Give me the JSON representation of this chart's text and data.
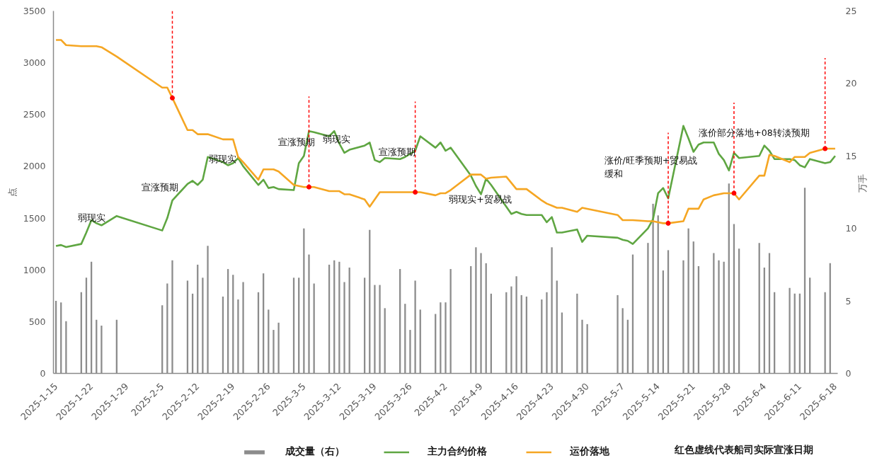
{
  "chart_data": {
    "type": "line",
    "x": [
      "2025-01-15",
      "2025-01-16",
      "2025-01-17",
      "2025-01-20",
      "2025-01-21",
      "2025-01-22",
      "2025-01-23",
      "2025-01-24",
      "2025-01-27",
      "2025-02-05",
      "2025-02-06",
      "2025-02-07",
      "2025-02-10",
      "2025-02-11",
      "2025-02-12",
      "2025-02-13",
      "2025-02-14",
      "2025-02-17",
      "2025-02-18",
      "2025-02-19",
      "2025-02-20",
      "2025-02-21",
      "2025-02-24",
      "2025-02-25",
      "2025-02-26",
      "2025-02-27",
      "2025-02-28",
      "2025-03-03",
      "2025-03-04",
      "2025-03-05",
      "2025-03-06",
      "2025-03-07",
      "2025-03-10",
      "2025-03-11",
      "2025-03-12",
      "2025-03-13",
      "2025-03-14",
      "2025-03-17",
      "2025-03-18",
      "2025-03-19",
      "2025-03-20",
      "2025-03-21",
      "2025-03-24",
      "2025-03-25",
      "2025-03-26",
      "2025-03-27",
      "2025-03-28",
      "2025-03-31",
      "2025-04-01",
      "2025-04-02",
      "2025-04-03",
      "2025-04-07",
      "2025-04-08",
      "2025-04-09",
      "2025-04-10",
      "2025-04-11",
      "2025-04-14",
      "2025-04-15",
      "2025-04-16",
      "2025-04-17",
      "2025-04-18",
      "2025-04-21",
      "2025-04-22",
      "2025-04-23",
      "2025-04-24",
      "2025-04-25",
      "2025-04-28",
      "2025-04-29",
      "2025-04-30",
      "2025-05-06",
      "2025-05-07",
      "2025-05-08",
      "2025-05-09",
      "2025-05-12",
      "2025-05-13",
      "2025-05-14",
      "2025-05-15",
      "2025-05-16",
      "2025-05-19",
      "2025-05-20",
      "2025-05-21",
      "2025-05-22",
      "2025-05-23",
      "2025-05-25",
      "2025-05-26",
      "2025-05-27",
      "2025-05-28",
      "2025-05-29",
      "2025-05-30",
      "2025-06-03",
      "2025-06-04",
      "2025-06-05",
      "2025-06-06",
      "2025-06-09",
      "2025-06-10",
      "2025-06-11",
      "2025-06-12",
      "2025-06-13",
      "2025-06-16",
      "2025-06-17",
      "2025-06-18"
    ],
    "series": [
      {
        "name": "成交量（右）",
        "type": "bar",
        "axis": "y2",
        "color": "#8c8c8c",
        "values": [
          5.0,
          4.9,
          3.6,
          5.6,
          6.6,
          7.7,
          3.7,
          3.3,
          3.7,
          4.7,
          6.2,
          7.8,
          6.4,
          5.5,
          7.5,
          6.6,
          8.8,
          5.3,
          7.2,
          6.8,
          5.1,
          6.3,
          5.6,
          6.9,
          4.4,
          3.0,
          3.5,
          6.6,
          6.6,
          10.0,
          8.2,
          6.2,
          7.5,
          7.8,
          7.7,
          6.3,
          7.3,
          6.6,
          9.9,
          6.1,
          6.1,
          4.5,
          7.2,
          4.8,
          3.0,
          6.4,
          4.4,
          4.1,
          4.9,
          4.9,
          7.2,
          7.4,
          8.7,
          8.3,
          7.6,
          5.5,
          5.6,
          6.0,
          6.7,
          5.4,
          5.3,
          5.1,
          5.6,
          8.7,
          6.4,
          4.2,
          5.5,
          3.7,
          3.4,
          5.4,
          4.5,
          3.7,
          8.2,
          9.0,
          11.7,
          10.9,
          7.1,
          8.5,
          7.8,
          10.0,
          9.1,
          7.4,
          null,
          8.3,
          7.8,
          7.7,
          13.1,
          10.3,
          8.6,
          9.0,
          7.3,
          8.3,
          5.6,
          5.9,
          5.5,
          5.5,
          12.8,
          6.6,
          5.6,
          7.6,
          null
        ]
      },
      {
        "name": "主力合约价格",
        "color": "#5fa642",
        "values": [
          1230,
          1240,
          1220,
          1250,
          1360,
          1480,
          1450,
          1430,
          1520,
          1380,
          1500,
          1670,
          1830,
          1860,
          1820,
          1870,
          2090,
          2040,
          2010,
          2030,
          2080,
          2000,
          1820,
          1870,
          1790,
          1800,
          1780,
          1770,
          2030,
          2100,
          2340,
          2330,
          2290,
          2340,
          2220,
          2130,
          2160,
          2200,
          2230,
          2060,
          2040,
          2080,
          2070,
          2090,
          2120,
          2150,
          2290,
          2180,
          2230,
          2150,
          2180,
          1910,
          1810,
          1730,
          1880,
          1820,
          1610,
          1540,
          1560,
          1540,
          1530,
          1530,
          1460,
          1510,
          1360,
          1360,
          1390,
          1270,
          1330,
          1310,
          1290,
          1280,
          1250,
          1400,
          1490,
          1740,
          1790,
          1690,
          2390,
          2270,
          2140,
          2210,
          2230,
          2230,
          2120,
          2060,
          1960,
          2130,
          2080,
          2100,
          2200,
          2150,
          2070,
          2070,
          2060,
          2010,
          1990,
          2070,
          2030,
          2040,
          2100
        ]
      },
      {
        "name": "运价落地",
        "color": "#f5a623",
        "values": [
          3220,
          3220,
          3170,
          3160,
          3160,
          3160,
          3160,
          3150,
          3060,
          2760,
          2760,
          2660,
          2350,
          2350,
          2310,
          2310,
          2310,
          2260,
          2260,
          2260,
          2090,
          2040,
          1870,
          1970,
          1970,
          1970,
          1950,
          1820,
          1810,
          1800,
          1800,
          1800,
          1760,
          1760,
          1760,
          1730,
          1730,
          1680,
          1610,
          1680,
          1750,
          1750,
          1750,
          1750,
          1750,
          1750,
          1750,
          1720,
          1740,
          1740,
          1770,
          1920,
          1920,
          1920,
          1880,
          1890,
          1900,
          1840,
          1780,
          1780,
          1780,
          1670,
          1640,
          1620,
          1600,
          1600,
          1560,
          1600,
          1590,
          1530,
          1480,
          1480,
          1480,
          1470,
          1470,
          1460,
          1450,
          1450,
          1470,
          1590,
          1590,
          1590,
          1680,
          1720,
          1730,
          1740,
          1740,
          1740,
          1680,
          1910,
          1910,
          2110,
          2100,
          2040,
          2090,
          2090,
          2090,
          2130,
          2170,
          2170,
          2170
        ]
      },
      {
        "type": "scatter",
        "marker": "circle",
        "color": "#ff0000",
        "x": [
          "2025-02-07",
          "2025-03-06",
          "2025-03-27",
          "2025-05-16",
          "2025-05-29",
          "2025-06-16"
        ],
        "values": [
          2660,
          1800,
          1750,
          1450,
          1740,
          2170
        ]
      }
    ],
    "xlim": [
      "2025-01-14T12:00",
      "2025-06-18T12:00"
    ],
    "xticks": [
      {
        "value": "2025-01-15",
        "label": "2025-1-15"
      },
      {
        "value": "2025-01-22",
        "label": "2025-1-22"
      },
      {
        "value": "2025-01-29",
        "label": "2025-1-29"
      },
      {
        "value": "2025-02-05",
        "label": "2025-2-5"
      },
      {
        "value": "2025-02-12",
        "label": "2025-2-12"
      },
      {
        "value": "2025-02-19",
        "label": "2025-2-19"
      },
      {
        "value": "2025-02-26",
        "label": "2025-2-26"
      },
      {
        "value": "2025-03-05",
        "label": "2025-3-5"
      },
      {
        "value": "2025-03-12",
        "label": "2025-3-12"
      },
      {
        "value": "2025-03-19",
        "label": "2025-3-19"
      },
      {
        "value": "2025-03-26",
        "label": "2025-3-26"
      },
      {
        "value": "2025-04-02",
        "label": "2025-4-2"
      },
      {
        "value": "2025-04-09",
        "label": "2025-4-9"
      },
      {
        "value": "2025-04-16",
        "label": "2025-4-16"
      },
      {
        "value": "2025-04-23",
        "label": "2025-4-23"
      },
      {
        "value": "2025-04-30",
        "label": "2025-4-30"
      },
      {
        "value": "2025-05-07",
        "label": "2025-5-7"
      },
      {
        "value": "2025-05-14",
        "label": "2025-5-14"
      },
      {
        "value": "2025-05-21",
        "label": "2025-5-21"
      },
      {
        "value": "2025-05-28",
        "label": "2025-5-28"
      },
      {
        "value": "2025-06-04",
        "label": "2025-6-4"
      },
      {
        "value": "2025-06-11",
        "label": "2025-6-11"
      },
      {
        "value": "2025-06-18",
        "label": "2025-6-18"
      }
    ],
    "ylim": [
      0,
      3500
    ],
    "yticks": [
      0,
      500,
      1000,
      1500,
      2000,
      2500,
      3000,
      3500
    ],
    "y2lim": [
      0,
      25
    ],
    "y2ticks": [
      0,
      5,
      10,
      15,
      20,
      25
    ],
    "ylabel": "点",
    "y2label": "万手",
    "legend": "bottom",
    "ref_lines": [
      {
        "axis": "x",
        "value": "2025-02-07",
        "color": "#ff0000",
        "line_style": "dashed"
      },
      {
        "axis": "x",
        "value": "2025-03-06",
        "color": "#ff0000",
        "line_style": "dashed"
      },
      {
        "axis": "x",
        "value": "2025-03-27",
        "color": "#ff0000",
        "line_style": "dashed"
      },
      {
        "axis": "x",
        "value": "2025-05-16",
        "color": "#ff0000",
        "line_style": "dashed"
      },
      {
        "axis": "x",
        "value": "2025-05-29",
        "color": "#ff0000",
        "line_style": "dashed"
      },
      {
        "axis": "x",
        "value": "2025-06-16",
        "color": "#ff0000",
        "line_style": "dashed"
      }
    ],
    "annotations": [
      {
        "text": "弱现实",
        "x": "2025-01-22",
        "y": 1505
      },
      "宣涨预期",
      {
        "text": "弱现实",
        "x": "2025-02-17",
        "y": 2070
      },
      "宣涨预期",
      {
        "text": "弱现实",
        "x": "2025-03-11T12:00",
        "y": 2260
      },
      "宣涨预期",
      "弱现实+贸易战",
      "涨价/旺季预期+贸易战缓和",
      "涨价部分落地+08转淡预期",
      "红色虚线代表船司实际宣涨日期"
    ]
  }
}
